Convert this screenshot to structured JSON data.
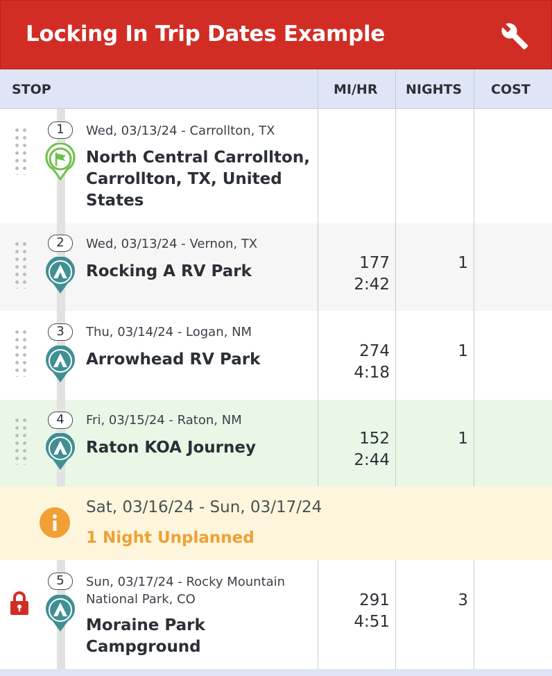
{
  "header": {
    "title": "Locking In Trip Dates Example",
    "settings_icon": "wrench-icon"
  },
  "columns": {
    "stop": "STOP",
    "mi_hr": "MI/HR",
    "nights": "NIGHTS",
    "cost": "COST"
  },
  "stops": [
    {
      "number": "1",
      "date": "Wed, 03/13/24 - Carrollton, TX",
      "name_lines": [
        "North Central Carrollton,",
        "Carrollton, TX, United",
        "States"
      ],
      "icon": "start-flag-icon"
    },
    {
      "number": "2",
      "date": "Wed, 03/13/24 - Vernon, TX",
      "name_lines": [
        "Rocking A RV Park"
      ],
      "miles": "177",
      "hours": "2:42",
      "nights": "1",
      "icon": "campground-icon"
    },
    {
      "number": "3",
      "date": "Thu, 03/14/24 - Logan, NM",
      "name_lines": [
        "Arrowhead RV Park"
      ],
      "miles": "274",
      "hours": "4:18",
      "nights": "1",
      "icon": "campground-icon"
    },
    {
      "number": "4",
      "date": "Fri, 03/15/24 - Raton, NM",
      "name_lines": [
        "Raton KOA Journey"
      ],
      "miles": "152",
      "hours": "2:44",
      "nights": "1",
      "icon": "campground-icon"
    },
    {
      "number": "5",
      "date_lines": [
        "Sun, 03/17/24 - Rocky Mountain",
        "National Park, CO"
      ],
      "name_lines": [
        "Moraine Park",
        "Campground"
      ],
      "miles": "291",
      "hours": "4:51",
      "nights": "3",
      "icon": "campground-icon",
      "locked": true
    }
  ],
  "unplanned": {
    "dates": "Sat, 03/16/24 - Sun, 03/17/24",
    "label": "1 Night Unplanned",
    "icon": "info-icon"
  },
  "colors": {
    "header": "#d12d25",
    "column_header": "#dfe5f7",
    "pin": "#3f8f93",
    "start_pin": "#6dbf4a",
    "unplanned": "#f0a035",
    "lock": "#d12d25",
    "current_row": "#eaf7e7",
    "unplanned_row": "#fdf6dc"
  }
}
